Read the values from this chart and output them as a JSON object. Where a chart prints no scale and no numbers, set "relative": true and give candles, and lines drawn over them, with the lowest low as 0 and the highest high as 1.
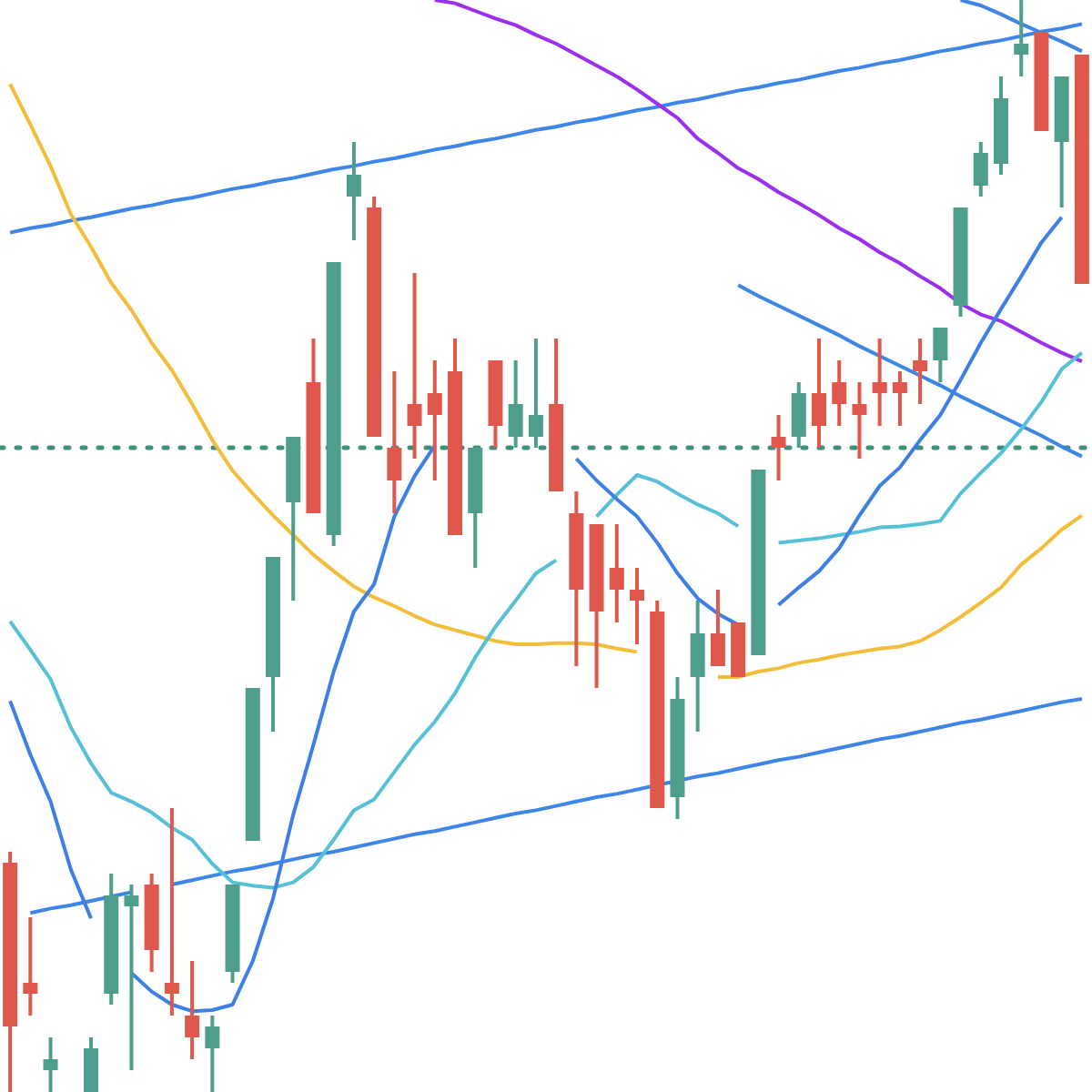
{
  "chart_data": {
    "type": "candlestick",
    "relative": true,
    "tick_labels": false,
    "legend": false,
    "grid": false,
    "marker": "none",
    "categories": [
      null,
      null,
      null,
      null,
      null,
      null,
      null,
      null,
      null,
      null,
      null,
      null,
      null,
      null,
      null,
      null,
      null,
      null,
      null,
      null,
      null,
      null,
      null,
      null,
      null,
      null,
      null,
      null,
      null,
      null,
      null,
      null,
      null,
      null,
      null,
      null,
      null,
      null,
      null,
      null,
      null,
      null,
      null,
      null,
      null,
      null,
      null,
      null,
      null,
      null,
      null,
      null,
      null,
      null
    ],
    "ohlc": [
      [
        0.21,
        0.22,
        0,
        0.06
      ],
      [
        0.1,
        0.16,
        0.07,
        0.09
      ],
      [
        0.02,
        0.05,
        0,
        0.03
      ],
      null,
      [
        0,
        0.05,
        0,
        0.04
      ],
      [
        0.09,
        0.2,
        0.08,
        0.18
      ],
      [
        0.17,
        0.19,
        0.02,
        0.18
      ],
      [
        0.19,
        0.2,
        0.11,
        0.13
      ],
      [
        0.1,
        0.26,
        0.07,
        0.09
      ],
      [
        0.07,
        0.12,
        0.03,
        0.05
      ],
      [
        0.04,
        0.07,
        0,
        0.06
      ],
      [
        0.11,
        0.19,
        0.1,
        0.19
      ],
      [
        0.23,
        0.37,
        0.23,
        0.37
      ],
      [
        0.38,
        0.49,
        0.33,
        0.49
      ],
      [
        0.54,
        0.6,
        0.45,
        0.6
      ],
      [
        0.65,
        0.69,
        0.53,
        0.53
      ],
      [
        0.51,
        0.76,
        0.5,
        0.76
      ],
      [
        0.82,
        0.87,
        0.78,
        0.84
      ],
      [
        0.81,
        0.82,
        0.6,
        0.6
      ],
      [
        0.59,
        0.66,
        0.53,
        0.56
      ],
      [
        0.63,
        0.75,
        0.58,
        0.61
      ],
      [
        0.64,
        0.67,
        0.56,
        0.62
      ],
      [
        0.66,
        0.69,
        0.51,
        0.51
      ],
      [
        0.53,
        0.59,
        0.48,
        0.59
      ],
      [
        0.67,
        0.67,
        0.59,
        0.61
      ],
      [
        0.6,
        0.67,
        0.59,
        0.63
      ],
      [
        0.6,
        0.69,
        0.59,
        0.62
      ],
      [
        0.63,
        0.69,
        0.55,
        0.55
      ],
      [
        0.53,
        0.55,
        0.39,
        0.46
      ],
      [
        0.52,
        0.52,
        0.37,
        0.44
      ],
      [
        0.48,
        0.52,
        0.43,
        0.46
      ],
      [
        0.46,
        0.48,
        0.41,
        0.45
      ],
      [
        0.44,
        0.45,
        0.26,
        0.26
      ],
      [
        0.27,
        0.38,
        0.25,
        0.36
      ],
      [
        0.38,
        0.45,
        0.33,
        0.42
      ],
      [
        0.42,
        0.46,
        0.39,
        0.39
      ],
      [
        0.43,
        0.43,
        0.38,
        0.38
      ],
      [
        0.4,
        0.57,
        0.4,
        0.57
      ],
      [
        0.6,
        0.62,
        0.56,
        0.59
      ],
      [
        0.6,
        0.65,
        0.59,
        0.64
      ],
      [
        0.64,
        0.69,
        0.59,
        0.61
      ],
      [
        0.65,
        0.67,
        0.61,
        0.63
      ],
      [
        0.63,
        0.65,
        0.58,
        0.62
      ],
      [
        0.65,
        0.69,
        0.61,
        0.64
      ],
      [
        0.65,
        0.66,
        0.61,
        0.64
      ],
      [
        0.67,
        0.69,
        0.63,
        0.66
      ],
      [
        0.67,
        0.7,
        0.65,
        0.7
      ],
      [
        0.72,
        0.81,
        0.71,
        0.81
      ],
      [
        0.83,
        0.87,
        0.82,
        0.86
      ],
      [
        0.85,
        0.93,
        0.84,
        0.91
      ],
      [
        0.95,
        1,
        0.93,
        0.96
      ],
      [
        0.97,
        0.97,
        0.88,
        0.88
      ],
      [
        0.87,
        0.93,
        0.81,
        0.93
      ],
      [
        0.95,
        0.95,
        0.74,
        0.74
      ]
    ],
    "colors": [
      "#e0574c",
      "#e0574c",
      "#4e9d8d",
      null,
      "#4e9d8d",
      "#4e9d8d",
      "#4e9d8d",
      "#e0574c",
      "#e0574c",
      "#e0574c",
      "#4e9d8d",
      "#4e9d8d",
      "#4e9d8d",
      "#4e9d8d",
      "#4e9d8d",
      "#e0574c",
      "#4e9d8d",
      "#4e9d8d",
      "#e0574c",
      "#e0574c",
      "#e0574c",
      "#e0574c",
      "#e0574c",
      "#4e9d8d",
      "#e0574c",
      "#4e9d8d",
      "#4e9d8d",
      "#e0574c",
      "#e0574c",
      "#e0574c",
      "#e0574c",
      "#e0574c",
      "#e0574c",
      "#4e9d8d",
      "#4e9d8d",
      "#e0574c",
      "#e0574c",
      "#4e9d8d",
      "#e0574c",
      "#4e9d8d",
      "#e0574c",
      "#e0574c",
      "#e0574c",
      "#e0574c",
      "#e0574c",
      "#e0574c",
      "#4e9d8d",
      "#4e9d8d",
      "#4e9d8d",
      "#4e9d8d",
      "#4e9d8d",
      "#e0574c",
      "#4e9d8d",
      "#e0574c"
    ],
    "series": [
      {
        "type": "line",
        "color": "#3d7fe6",
        "values": [
          0.358,
          0.309,
          0.266,
          0.204,
          0.159,
          null,
          0.109,
          0.092,
          0.08,
          0.074,
          0.075,
          0.08,
          0.12,
          0.177,
          0.254,
          0.318,
          0.385,
          0.44,
          0.465,
          0.527,
          0.564,
          0.592,
          null,
          null,
          null,
          null,
          null,
          null,
          0.58,
          0.56,
          0.543,
          0.527,
          0.503,
          0.475,
          0.452,
          0.438,
          0.428,
          null,
          0.446,
          0.462,
          0.477,
          0.498,
          0.528,
          0.555,
          0.572,
          0.597,
          0.62,
          0.652,
          0.686,
          0.717,
          0.747,
          0.778,
          0.801,
          null
        ]
      },
      {
        "type": "line",
        "color": "#56c1d6",
        "values": [
          0.431,
          0.405,
          0.378,
          0.334,
          0.301,
          0.274,
          0.266,
          0.256,
          0.242,
          0.231,
          0.209,
          0.192,
          0.189,
          0.187,
          0.192,
          0.206,
          0.231,
          0.258,
          0.268,
          0.293,
          0.318,
          0.339,
          0.365,
          0.398,
          0.426,
          0.45,
          0.475,
          0.487,
          null,
          0.527,
          0.547,
          0.565,
          0.559,
          0.548,
          0.538,
          0.53,
          0.518,
          null,
          0.503,
          0.505,
          0.507,
          0.51,
          0.513,
          0.517,
          0.518,
          0.52,
          0.523,
          0.548,
          0.567,
          0.585,
          0.607,
          0.632,
          0.662,
          0.677
        ]
      },
      {
        "type": "line",
        "color": "#f2bd3a",
        "values": [
          0.923,
          0.886,
          0.848,
          0.804,
          0.774,
          0.741,
          0.716,
          0.686,
          0.661,
          0.63,
          0.597,
          0.569,
          0.548,
          0.528,
          0.51,
          0.492,
          0.477,
          0.463,
          0.453,
          0.445,
          0.436,
          0.428,
          0.423,
          0.418,
          0.413,
          0.41,
          0.41,
          0.411,
          0.411,
          0.41,
          0.406,
          0.403,
          null,
          null,
          null,
          0.38,
          0.38,
          0.385,
          0.388,
          0.393,
          0.396,
          0.4,
          0.403,
          0.406,
          0.408,
          0.413,
          0.423,
          0.435,
          0.448,
          0.462,
          0.483,
          0.498,
          0.515,
          0.528
        ]
      },
      {
        "type": "line",
        "color": "#9b2ff0",
        "values": [
          null,
          null,
          null,
          null,
          null,
          null,
          null,
          null,
          null,
          null,
          null,
          null,
          null,
          null,
          null,
          null,
          null,
          null,
          null,
          null,
          null,
          1,
          0.997,
          0.99,
          0.983,
          0.977,
          0.968,
          0.96,
          0.95,
          0.94,
          0.93,
          0.918,
          0.905,
          0.892,
          0.873,
          0.86,
          0.846,
          0.836,
          0.824,
          0.814,
          0.803,
          0.791,
          0.781,
          0.769,
          0.759,
          0.747,
          0.736,
          0.722,
          0.712,
          0.706,
          0.696,
          0.686,
          0.677,
          0.669
        ]
      },
      {
        "type": "line",
        "color": "#3d85e6",
        "values": [
          0.787,
          0.791,
          0.794,
          0.798,
          0.801,
          0.805,
          0.809,
          0.812,
          0.816,
          0.819,
          0.823,
          0.827,
          0.83,
          0.834,
          0.837,
          0.841,
          0.845,
          0.848,
          0.852,
          0.855,
          0.859,
          0.863,
          0.866,
          0.87,
          0.873,
          0.877,
          0.881,
          0.884,
          0.888,
          0.891,
          0.895,
          0.899,
          0.902,
          0.906,
          0.909,
          0.913,
          0.917,
          0.92,
          0.924,
          0.927,
          0.931,
          0.935,
          0.938,
          0.942,
          0.945,
          0.949,
          0.953,
          0.956,
          0.96,
          0.963,
          0.967,
          0.971,
          0.974,
          0.978
        ]
      },
      {
        "type": "line",
        "color": "#3d85e6",
        "values": [
          null,
          0.164,
          0.168,
          0.171,
          0.175,
          0.179,
          0.183,
          null,
          0.19,
          0.194,
          0.198,
          0.202,
          0.205,
          0.209,
          0.213,
          0.217,
          0.22,
          0.224,
          0.228,
          0.232,
          0.236,
          0.239,
          0.243,
          0.247,
          0.251,
          0.255,
          0.258,
          0.262,
          0.266,
          0.27,
          0.273,
          0.277,
          0.281,
          0.285,
          0.289,
          0.292,
          0.296,
          0.3,
          0.304,
          0.307,
          0.311,
          0.315,
          0.319,
          0.323,
          0.326,
          0.33,
          0.334,
          0.338,
          0.341,
          0.345,
          0.349,
          0.353,
          0.357,
          0.36
        ]
      },
      {
        "type": "line",
        "color": "#3d85e6",
        "values": [
          null,
          null,
          null,
          null,
          null,
          null,
          null,
          null,
          null,
          null,
          null,
          null,
          null,
          null,
          null,
          null,
          null,
          null,
          null,
          null,
          null,
          null,
          null,
          null,
          null,
          null,
          null,
          null,
          null,
          null,
          null,
          null,
          null,
          null,
          null,
          null,
          0.739,
          0.729,
          0.72,
          0.711,
          0.702,
          0.693,
          0.683,
          0.674,
          0.665,
          0.656,
          0.647,
          0.637,
          0.628,
          0.619,
          0.61,
          0.601,
          0.591,
          0.582
        ]
      },
      {
        "type": "line",
        "color": "#3d85e6",
        "values": [
          null,
          null,
          null,
          null,
          null,
          null,
          null,
          null,
          null,
          null,
          null,
          null,
          null,
          null,
          null,
          null,
          null,
          null,
          null,
          null,
          null,
          null,
          null,
          null,
          null,
          null,
          null,
          null,
          null,
          null,
          null,
          null,
          null,
          null,
          null,
          null,
          null,
          null,
          null,
          null,
          null,
          null,
          null,
          null,
          null,
          null,
          null,
          1,
          0.995,
          0.987,
          0.978,
          0.97,
          0.962,
          0.953
        ]
      }
    ],
    "ref_lines": [
      {
        "axis": "y",
        "value": 0.59,
        "color": "#3d8f7c",
        "line_style": "dotted"
      }
    ]
  }
}
